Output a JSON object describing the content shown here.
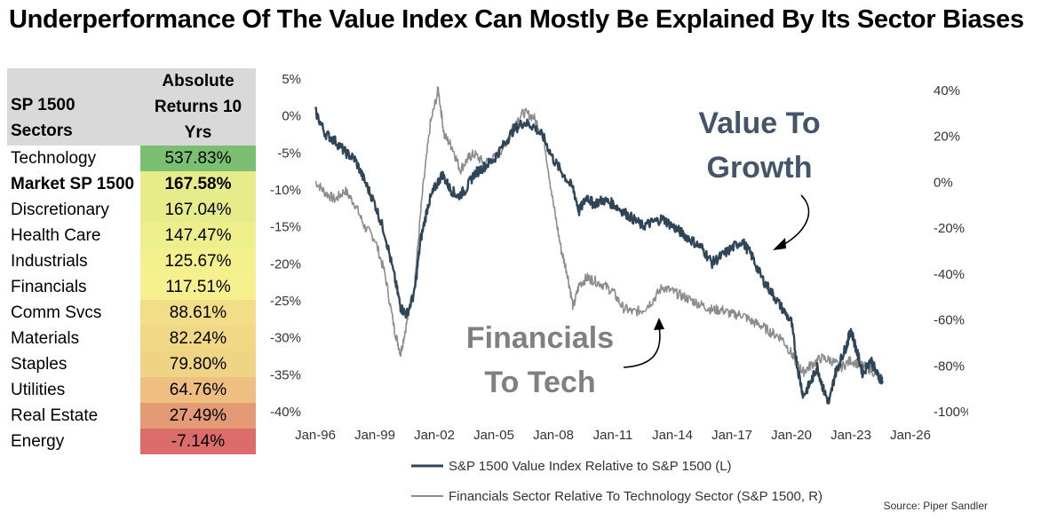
{
  "title": "Underperformance Of The Value Index Can Mostly Be Explained By Its Sector Biases",
  "table": {
    "col1_header": "SP 1500 Sectors",
    "col2_header_lines": [
      "Absolute",
      "Returns 10",
      "Yrs"
    ],
    "rows": [
      {
        "name": "Technology",
        "value": "537.83%",
        "color": "#7bbf73",
        "bold": false
      },
      {
        "name": "Market SP 1500",
        "value": "167.58%",
        "color": "#e6ec8a",
        "bold": true
      },
      {
        "name": "Discretionary",
        "value": "167.04%",
        "color": "#e6ec8a",
        "bold": false
      },
      {
        "name": "Health Care",
        "value": "147.47%",
        "color": "#edef8c",
        "bold": false
      },
      {
        "name": "Industrials",
        "value": "125.67%",
        "color": "#f3f08d",
        "bold": false
      },
      {
        "name": "Financials",
        "value": "117.51%",
        "color": "#f6f08e",
        "bold": false
      },
      {
        "name": "Comm Svcs",
        "value": "88.61%",
        "color": "#f2dd89",
        "bold": false
      },
      {
        "name": "Materials",
        "value": "82.24%",
        "color": "#f1d887",
        "bold": false
      },
      {
        "name": "Staples",
        "value": "79.80%",
        "color": "#f0d486",
        "bold": false
      },
      {
        "name": "Utilities",
        "value": "64.76%",
        "color": "#eebf80",
        "bold": false
      },
      {
        "name": "Real Estate",
        "value": "27.49%",
        "color": "#e49a75",
        "bold": false
      },
      {
        "name": "Energy",
        "value": "-7.14%",
        "color": "#dc6b6b",
        "bold": false
      }
    ]
  },
  "chart_data": {
    "type": "line",
    "x_ticks": [
      "Jan-96",
      "Jan-99",
      "Jan-02",
      "Jan-05",
      "Jan-08",
      "Jan-11",
      "Jan-14",
      "Jan-17",
      "Jan-20",
      "Jan-23",
      "Jan-26"
    ],
    "xlim": [
      "1996-01",
      "2026-01"
    ],
    "y_left": {
      "ticks": [
        "5%",
        "0%",
        "-5%",
        "-10%",
        "-15%",
        "-20%",
        "-25%",
        "-30%",
        "-35%",
        "-40%"
      ],
      "ylim": [
        -40,
        5
      ]
    },
    "y_right": {
      "ticks": [
        "40%",
        "20%",
        "0%",
        "-20%",
        "-40%",
        "-60%",
        "-80%",
        "-100%"
      ],
      "ylim": [
        -100,
        45
      ]
    },
    "series": [
      {
        "name": "S&P 1500 Value Index Relative to S&P 1500 (L)",
        "axis": "left",
        "color": "#2f4558",
        "points": [
          [
            1996.0,
            0.5
          ],
          [
            1996.5,
            -2.5
          ],
          [
            1997.0,
            -3.5
          ],
          [
            1997.5,
            -5
          ],
          [
            1998.0,
            -6
          ],
          [
            1998.5,
            -9
          ],
          [
            1999.0,
            -12
          ],
          [
            1999.5,
            -16
          ],
          [
            2000.0,
            -22
          ],
          [
            2000.3,
            -26
          ],
          [
            2000.6,
            -27
          ],
          [
            2001.0,
            -24
          ],
          [
            2001.3,
            -17
          ],
          [
            2001.7,
            -12
          ],
          [
            2002.0,
            -10
          ],
          [
            2002.4,
            -8
          ],
          [
            2002.8,
            -10
          ],
          [
            2003.2,
            -11
          ],
          [
            2003.6,
            -10
          ],
          [
            2004.0,
            -8
          ],
          [
            2004.5,
            -7
          ],
          [
            2005.0,
            -6
          ],
          [
            2005.5,
            -4
          ],
          [
            2006.0,
            -2
          ],
          [
            2006.5,
            -1
          ],
          [
            2007.0,
            -1.5
          ],
          [
            2007.5,
            -3
          ],
          [
            2008.0,
            -6
          ],
          [
            2008.5,
            -8
          ],
          [
            2009.0,
            -10
          ],
          [
            2009.3,
            -13
          ],
          [
            2009.7,
            -11
          ],
          [
            2010.0,
            -12
          ],
          [
            2010.5,
            -11.5
          ],
          [
            2011.0,
            -12
          ],
          [
            2011.5,
            -13
          ],
          [
            2012.0,
            -14
          ],
          [
            2012.5,
            -15
          ],
          [
            2013.0,
            -14.5
          ],
          [
            2013.5,
            -14
          ],
          [
            2014.0,
            -15
          ],
          [
            2014.5,
            -16
          ],
          [
            2015.0,
            -17
          ],
          [
            2015.5,
            -18
          ],
          [
            2016.0,
            -20
          ],
          [
            2016.5,
            -19
          ],
          [
            2017.0,
            -18
          ],
          [
            2017.5,
            -17
          ],
          [
            2018.0,
            -19
          ],
          [
            2018.5,
            -22
          ],
          [
            2019.0,
            -24
          ],
          [
            2019.5,
            -26
          ],
          [
            2020.0,
            -28
          ],
          [
            2020.3,
            -34
          ],
          [
            2020.6,
            -38
          ],
          [
            2021.0,
            -36
          ],
          [
            2021.3,
            -34
          ],
          [
            2021.6,
            -37
          ],
          [
            2021.9,
            -39
          ],
          [
            2022.2,
            -35
          ],
          [
            2022.5,
            -33
          ],
          [
            2022.8,
            -31
          ],
          [
            2023.0,
            -29
          ],
          [
            2023.3,
            -32
          ],
          [
            2023.6,
            -35
          ],
          [
            2024.0,
            -33
          ],
          [
            2024.3,
            -35
          ],
          [
            2024.6,
            -36
          ]
        ]
      },
      {
        "name": "Financials Sector Relative To Technology Sector (S&P 1500, R)",
        "axis": "right",
        "color": "#8c8c8c",
        "points": [
          [
            1996.0,
            0
          ],
          [
            1996.5,
            -5
          ],
          [
            1997.0,
            -8
          ],
          [
            1997.5,
            -4
          ],
          [
            1998.0,
            -10
          ],
          [
            1998.5,
            -20
          ],
          [
            1999.0,
            -25
          ],
          [
            1999.5,
            -40
          ],
          [
            2000.0,
            -65
          ],
          [
            2000.3,
            -75
          ],
          [
            2000.6,
            -62
          ],
          [
            2001.0,
            -45
          ],
          [
            2001.4,
            -5
          ],
          [
            2001.8,
            25
          ],
          [
            2002.2,
            40
          ],
          [
            2002.5,
            20
          ],
          [
            2002.9,
            15
          ],
          [
            2003.3,
            5
          ],
          [
            2003.7,
            10
          ],
          [
            2004.0,
            12
          ],
          [
            2004.5,
            8
          ],
          [
            2005.0,
            10
          ],
          [
            2005.5,
            15
          ],
          [
            2006.0,
            25
          ],
          [
            2006.5,
            30
          ],
          [
            2007.0,
            28
          ],
          [
            2007.5,
            20
          ],
          [
            2008.0,
            -10
          ],
          [
            2008.4,
            -30
          ],
          [
            2008.7,
            -40
          ],
          [
            2009.0,
            -55
          ],
          [
            2009.3,
            -45
          ],
          [
            2009.7,
            -42
          ],
          [
            2010.0,
            -43
          ],
          [
            2010.5,
            -45
          ],
          [
            2011.0,
            -48
          ],
          [
            2011.5,
            -55
          ],
          [
            2012.0,
            -57
          ],
          [
            2012.5,
            -56
          ],
          [
            2013.0,
            -52
          ],
          [
            2013.5,
            -46
          ],
          [
            2014.0,
            -48
          ],
          [
            2014.5,
            -50
          ],
          [
            2015.0,
            -52
          ],
          [
            2015.5,
            -54
          ],
          [
            2016.0,
            -56
          ],
          [
            2016.5,
            -56
          ],
          [
            2017.0,
            -58
          ],
          [
            2017.5,
            -58
          ],
          [
            2018.0,
            -61
          ],
          [
            2018.5,
            -63
          ],
          [
            2019.0,
            -66
          ],
          [
            2019.5,
            -68
          ],
          [
            2020.0,
            -75
          ],
          [
            2020.3,
            -80
          ],
          [
            2020.6,
            -83
          ],
          [
            2021.0,
            -80
          ],
          [
            2021.5,
            -77
          ],
          [
            2022.0,
            -78
          ],
          [
            2022.5,
            -81
          ],
          [
            2023.0,
            -78
          ],
          [
            2023.5,
            -80
          ],
          [
            2024.0,
            -82
          ],
          [
            2024.6,
            -86
          ]
        ]
      }
    ],
    "annotations": [
      {
        "text_lines": [
          "Value To",
          "Growth"
        ],
        "color": "#44546a"
      },
      {
        "text_lines": [
          "Financials",
          "To Tech"
        ],
        "color": "#808080"
      }
    ],
    "legend_position": "bottom"
  },
  "source": "Source: Piper Sandler"
}
